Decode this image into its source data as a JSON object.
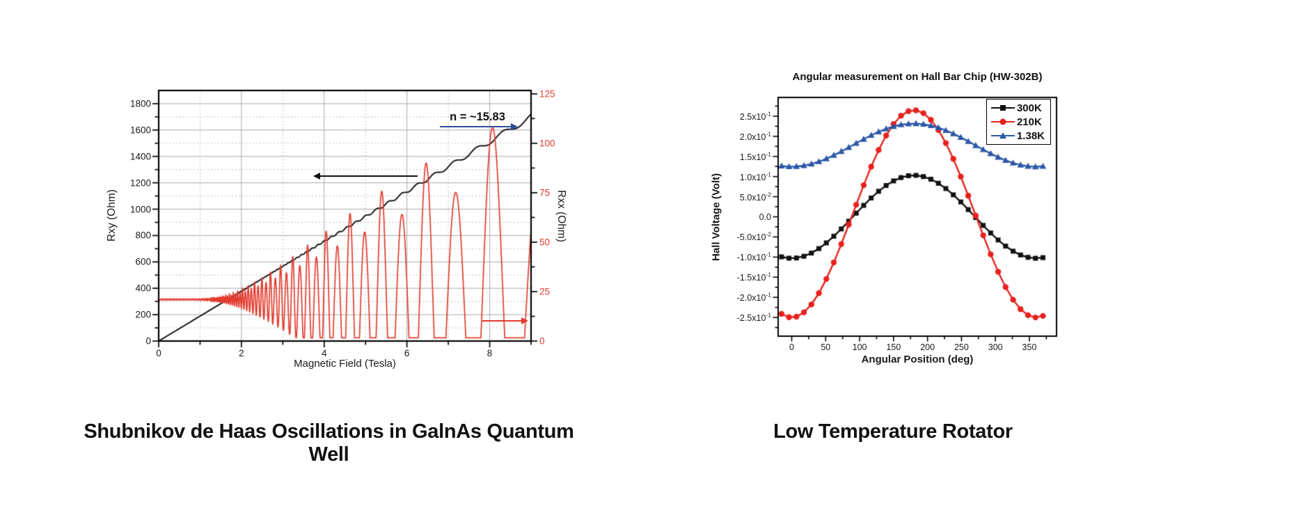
{
  "page": {
    "background": "#ffffff"
  },
  "chart_data": [
    {
      "id": "sdh",
      "type": "line",
      "caption": "Shubnikov de Haas Oscillations in GalnAs Quantum Well",
      "xlabel": "Magnetic Field (Tesla)",
      "ylabel_left": "Rxy (Ohm)",
      "ylabel_right": "Rxx (Ohm)",
      "xlim": [
        0,
        9
      ],
      "ylim_left": [
        0,
        1900
      ],
      "ylim_right": [
        0,
        126.7
      ],
      "x_major_ticks": [
        0,
        2,
        4,
        6,
        8
      ],
      "x_minor_step": 1,
      "y_left_major_ticks": [
        0,
        200,
        400,
        600,
        800,
        1000,
        1200,
        1400,
        1600,
        1800
      ],
      "y_left_minor_step": 100,
      "y_right_major_ticks": [
        0,
        25,
        50,
        75,
        100,
        125
      ],
      "y_right_minor_step": 12.5,
      "grid": {
        "major_color": "#a8a8a8",
        "minor_color": "#c0c0c0",
        "minor_style": "dashed"
      },
      "axis_color": "#000000",
      "annotation": {
        "text": "n = ~15.83",
        "arrow_color": "#2b4d9e"
      },
      "series": [
        {
          "name": "Rxy",
          "axis": "left",
          "color": "#111111",
          "model": "hall_staircase",
          "params": {
            "slope": 189,
            "step_freq": 100,
            "phase": -1.67
          },
          "readings": [
            [
              0,
              0
            ],
            [
              2,
              380
            ],
            [
              4,
              790
            ],
            [
              6,
              1165
            ],
            [
              8,
              1470
            ],
            [
              9,
              1720
            ]
          ]
        },
        {
          "name": "Rxx",
          "axis": "right",
          "color": "#e23b2e",
          "model": "sdh_oscillation",
          "params": {
            "baseline": 21,
            "amp": 220,
            "damping": 7.5,
            "freq": 65,
            "phase": -0.36,
            "floor": 1.6,
            "alt_mod": 0.15
          },
          "readings": {
            "baseline_low_field": 21,
            "peak_positions_T": [
              5.0,
              5.65,
              6.4,
              7.15,
              8.35
            ],
            "peak_values_Ohm": [
              57,
              68,
              61,
              72,
              105
            ],
            "minima_positions_T": [
              6.0,
              6.8,
              7.6,
              8.75
            ],
            "minima_values_Ohm": [
              5,
              2,
              3,
              19
            ]
          }
        }
      ],
      "legend_position": "none",
      "grid_on": true
    },
    {
      "id": "rotator",
      "type": "scatter-line",
      "title": "Angular measurement on Hall Bar Chip (HW-302B)",
      "caption": "Low Temperature Rotator",
      "xlabel": "Angular Position (deg)",
      "ylabel": "Hall Voltage (Volt)",
      "xlim": [
        -20,
        390
      ],
      "ylim": [
        -0.2965,
        0.2965
      ],
      "x_major_ticks": [
        0,
        50,
        100,
        150,
        200,
        250,
        300,
        350
      ],
      "x_minor_step": 25,
      "y_major_tick_values": [
        0.25,
        0.2,
        0.15,
        0.1,
        0.05,
        0.0,
        -0.05,
        -0.1,
        -0.15,
        -0.2,
        -0.25
      ],
      "y_tick_labels": [
        "2.5x10^-1",
        "2.0x10^-1",
        "1.5x10^-1",
        "1.0x10^-1",
        "5.0x10^-2",
        "0.0",
        "-5.0x10^-2",
        "-1.0x10^-1",
        "-1.5x10^-1",
        "-2.0x10^-1",
        "-2.5x10^-1"
      ],
      "y_minor_step": 0.025,
      "grid_on": false,
      "axis_color": "#000000",
      "legend_position": "top-right",
      "x": [
        -15,
        -4,
        7,
        18,
        29,
        40,
        51,
        62,
        73,
        84,
        95,
        106,
        117,
        128,
        139,
        150,
        161,
        172,
        183,
        194,
        205,
        216,
        227,
        238,
        249,
        260,
        271,
        282,
        293,
        304,
        315,
        326,
        337,
        348,
        359,
        370
      ],
      "series": [
        {
          "name": "300K",
          "color": "#111111",
          "marker": "square",
          "values": [
            -0.0995,
            -0.1028,
            -0.1023,
            -0.098,
            -0.0901,
            -0.0789,
            -0.0648,
            -0.0483,
            -0.0301,
            -0.0108,
            0.009,
            0.0284,
            0.0468,
            0.0634,
            0.0777,
            0.0892,
            0.0974,
            0.102,
            0.1029,
            0.0999,
            0.0933,
            0.0833,
            0.0702,
            0.0546,
            0.0369,
            0.0179,
            -0.0018,
            -0.0214,
            -0.0402,
            -0.0576,
            -0.0728,
            -0.0854,
            -0.0948,
            -0.1007,
            -0.103,
            -0.1014
          ]
        },
        {
          "name": "210K",
          "color": "#e8211c",
          "marker": "circle",
          "values": [
            -0.2412,
            -0.2494,
            -0.2481,
            -0.2374,
            -0.2177,
            -0.1898,
            -0.1545,
            -0.1134,
            -0.0678,
            -0.0194,
            0.03,
            0.0785,
            0.1244,
            0.166,
            0.2018,
            0.2305,
            0.251,
            0.2625,
            0.2646,
            0.2574,
            0.2409,
            0.2158,
            0.1831,
            0.1439,
            0.0998,
            0.0522,
            0.003,
            -0.046,
            -0.0931,
            -0.1365,
            -0.1746,
            -0.206,
            -0.2295,
            -0.2444,
            -0.25,
            -0.2461
          ]
        },
        {
          "name": "1.38K",
          "color": "#2b57a7",
          "marker": "triangle",
          "values": [
            0.1263,
            0.1246,
            0.1249,
            0.1271,
            0.1312,
            0.137,
            0.1443,
            0.1529,
            0.1624,
            0.1724,
            0.1827,
            0.1927,
            0.2023,
            0.211,
            0.2184,
            0.2243,
            0.2286,
            0.231,
            0.2315,
            0.2299,
            0.2265,
            0.2213,
            0.2145,
            0.2064,
            0.1972,
            0.1873,
            0.1771,
            0.1669,
            0.1571,
            0.1481,
            0.1402,
            0.1336,
            0.1287,
            0.1256,
            0.1244,
            0.1253
          ]
        }
      ]
    }
  ]
}
